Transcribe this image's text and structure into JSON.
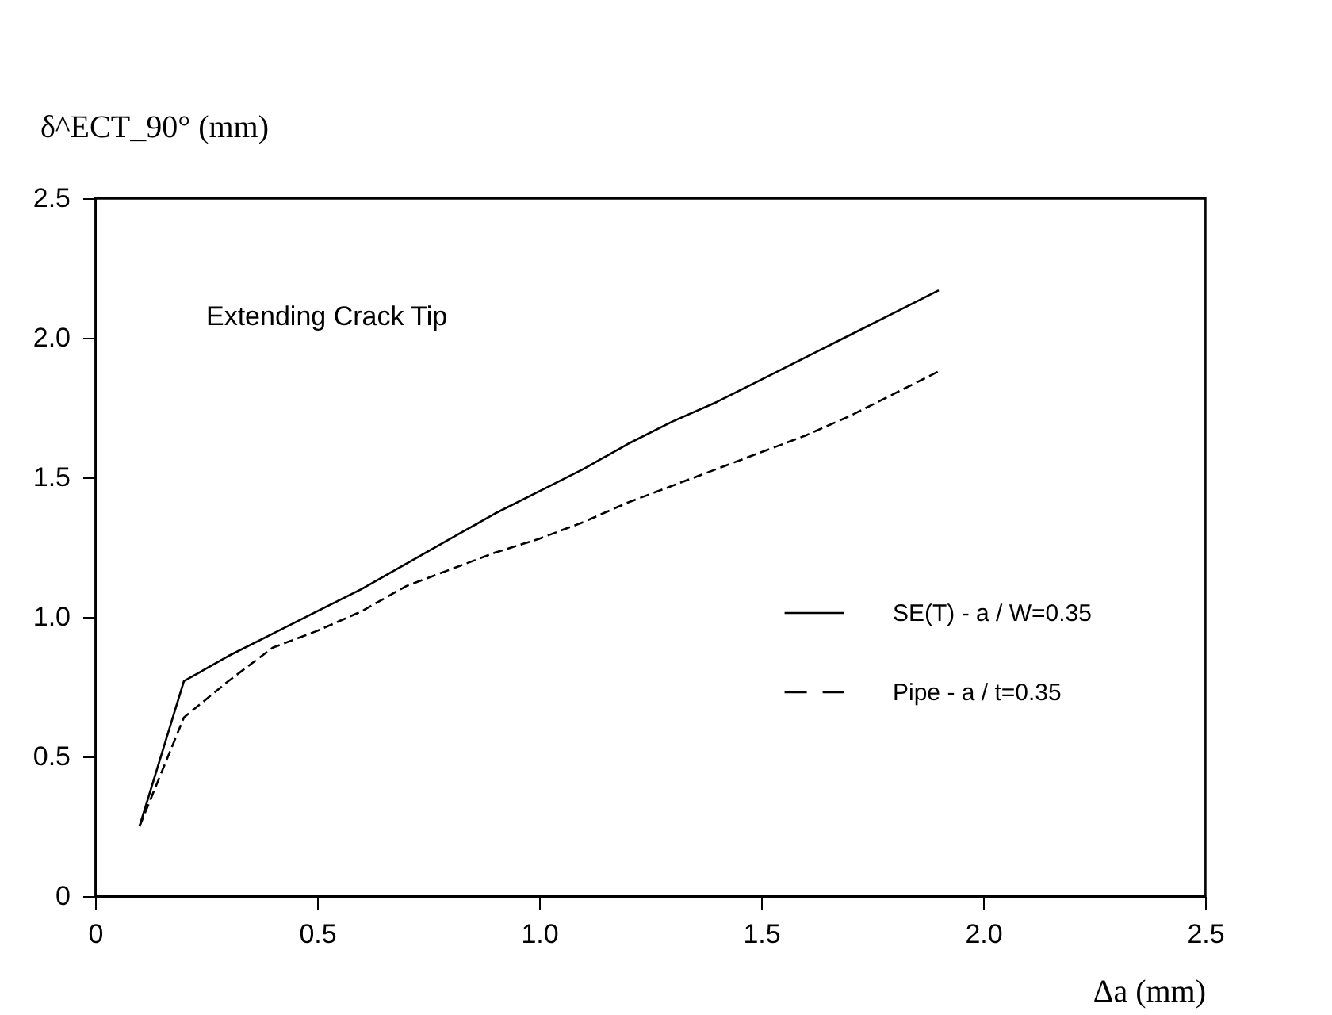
{
  "chart_data": {
    "type": "line",
    "xlabel": "Δa (mm)",
    "ylabel": "δ^ECT_90° (mm)",
    "annotations": [
      "Extending Crack Tip"
    ],
    "series": [
      {
        "name": "SE(T) - a / W=0.35",
        "color": "#000000",
        "line_style": "solid",
        "x": [
          0.1,
          0.2,
          0.3,
          0.4,
          0.5,
          0.6,
          0.7,
          0.8,
          0.9,
          1.0,
          1.1,
          1.2,
          1.3,
          1.4,
          1.5,
          1.6,
          1.7,
          1.8,
          1.9
        ],
        "values": [
          0.25,
          0.77,
          0.86,
          0.94,
          1.02,
          1.1,
          1.19,
          1.28,
          1.37,
          1.45,
          1.53,
          1.62,
          1.7,
          1.77,
          1.85,
          1.93,
          2.01,
          2.09,
          2.17
        ]
      },
      {
        "name": "Pipe - a / t=0.35",
        "color": "#000000",
        "line_style": "dashed",
        "x": [
          0.1,
          0.2,
          0.3,
          0.4,
          0.5,
          0.6,
          0.7,
          0.8,
          0.9,
          1.0,
          1.1,
          1.2,
          1.3,
          1.4,
          1.5,
          1.6,
          1.7,
          1.8,
          1.9
        ],
        "values": [
          0.25,
          0.64,
          0.77,
          0.89,
          0.95,
          1.02,
          1.11,
          1.17,
          1.23,
          1.28,
          1.34,
          1.41,
          1.47,
          1.53,
          1.59,
          1.65,
          1.72,
          1.8,
          1.88
        ]
      }
    ],
    "xlim": [
      0,
      2.5
    ],
    "ylim": [
      0,
      2.5
    ],
    "xticks": [
      0,
      {
        "value": 0.5,
        "label": "0.5"
      },
      {
        "value": 1,
        "label": "1.0"
      },
      {
        "value": 1.5,
        "label": "1.5"
      },
      {
        "value": 2,
        "label": "2.0"
      },
      {
        "value": 2.5,
        "label": "2.5"
      }
    ],
    "yticks": [
      0,
      {
        "value": 0.5,
        "label": "0.5"
      },
      {
        "value": 1,
        "label": "1.0"
      },
      {
        "value": 1.5,
        "label": "1.5"
      },
      {
        "value": 2,
        "label": "2.0"
      },
      {
        "value": 2.5,
        "label": "2.5"
      }
    ],
    "grid": false,
    "legend": "right",
    "marker": "none"
  }
}
